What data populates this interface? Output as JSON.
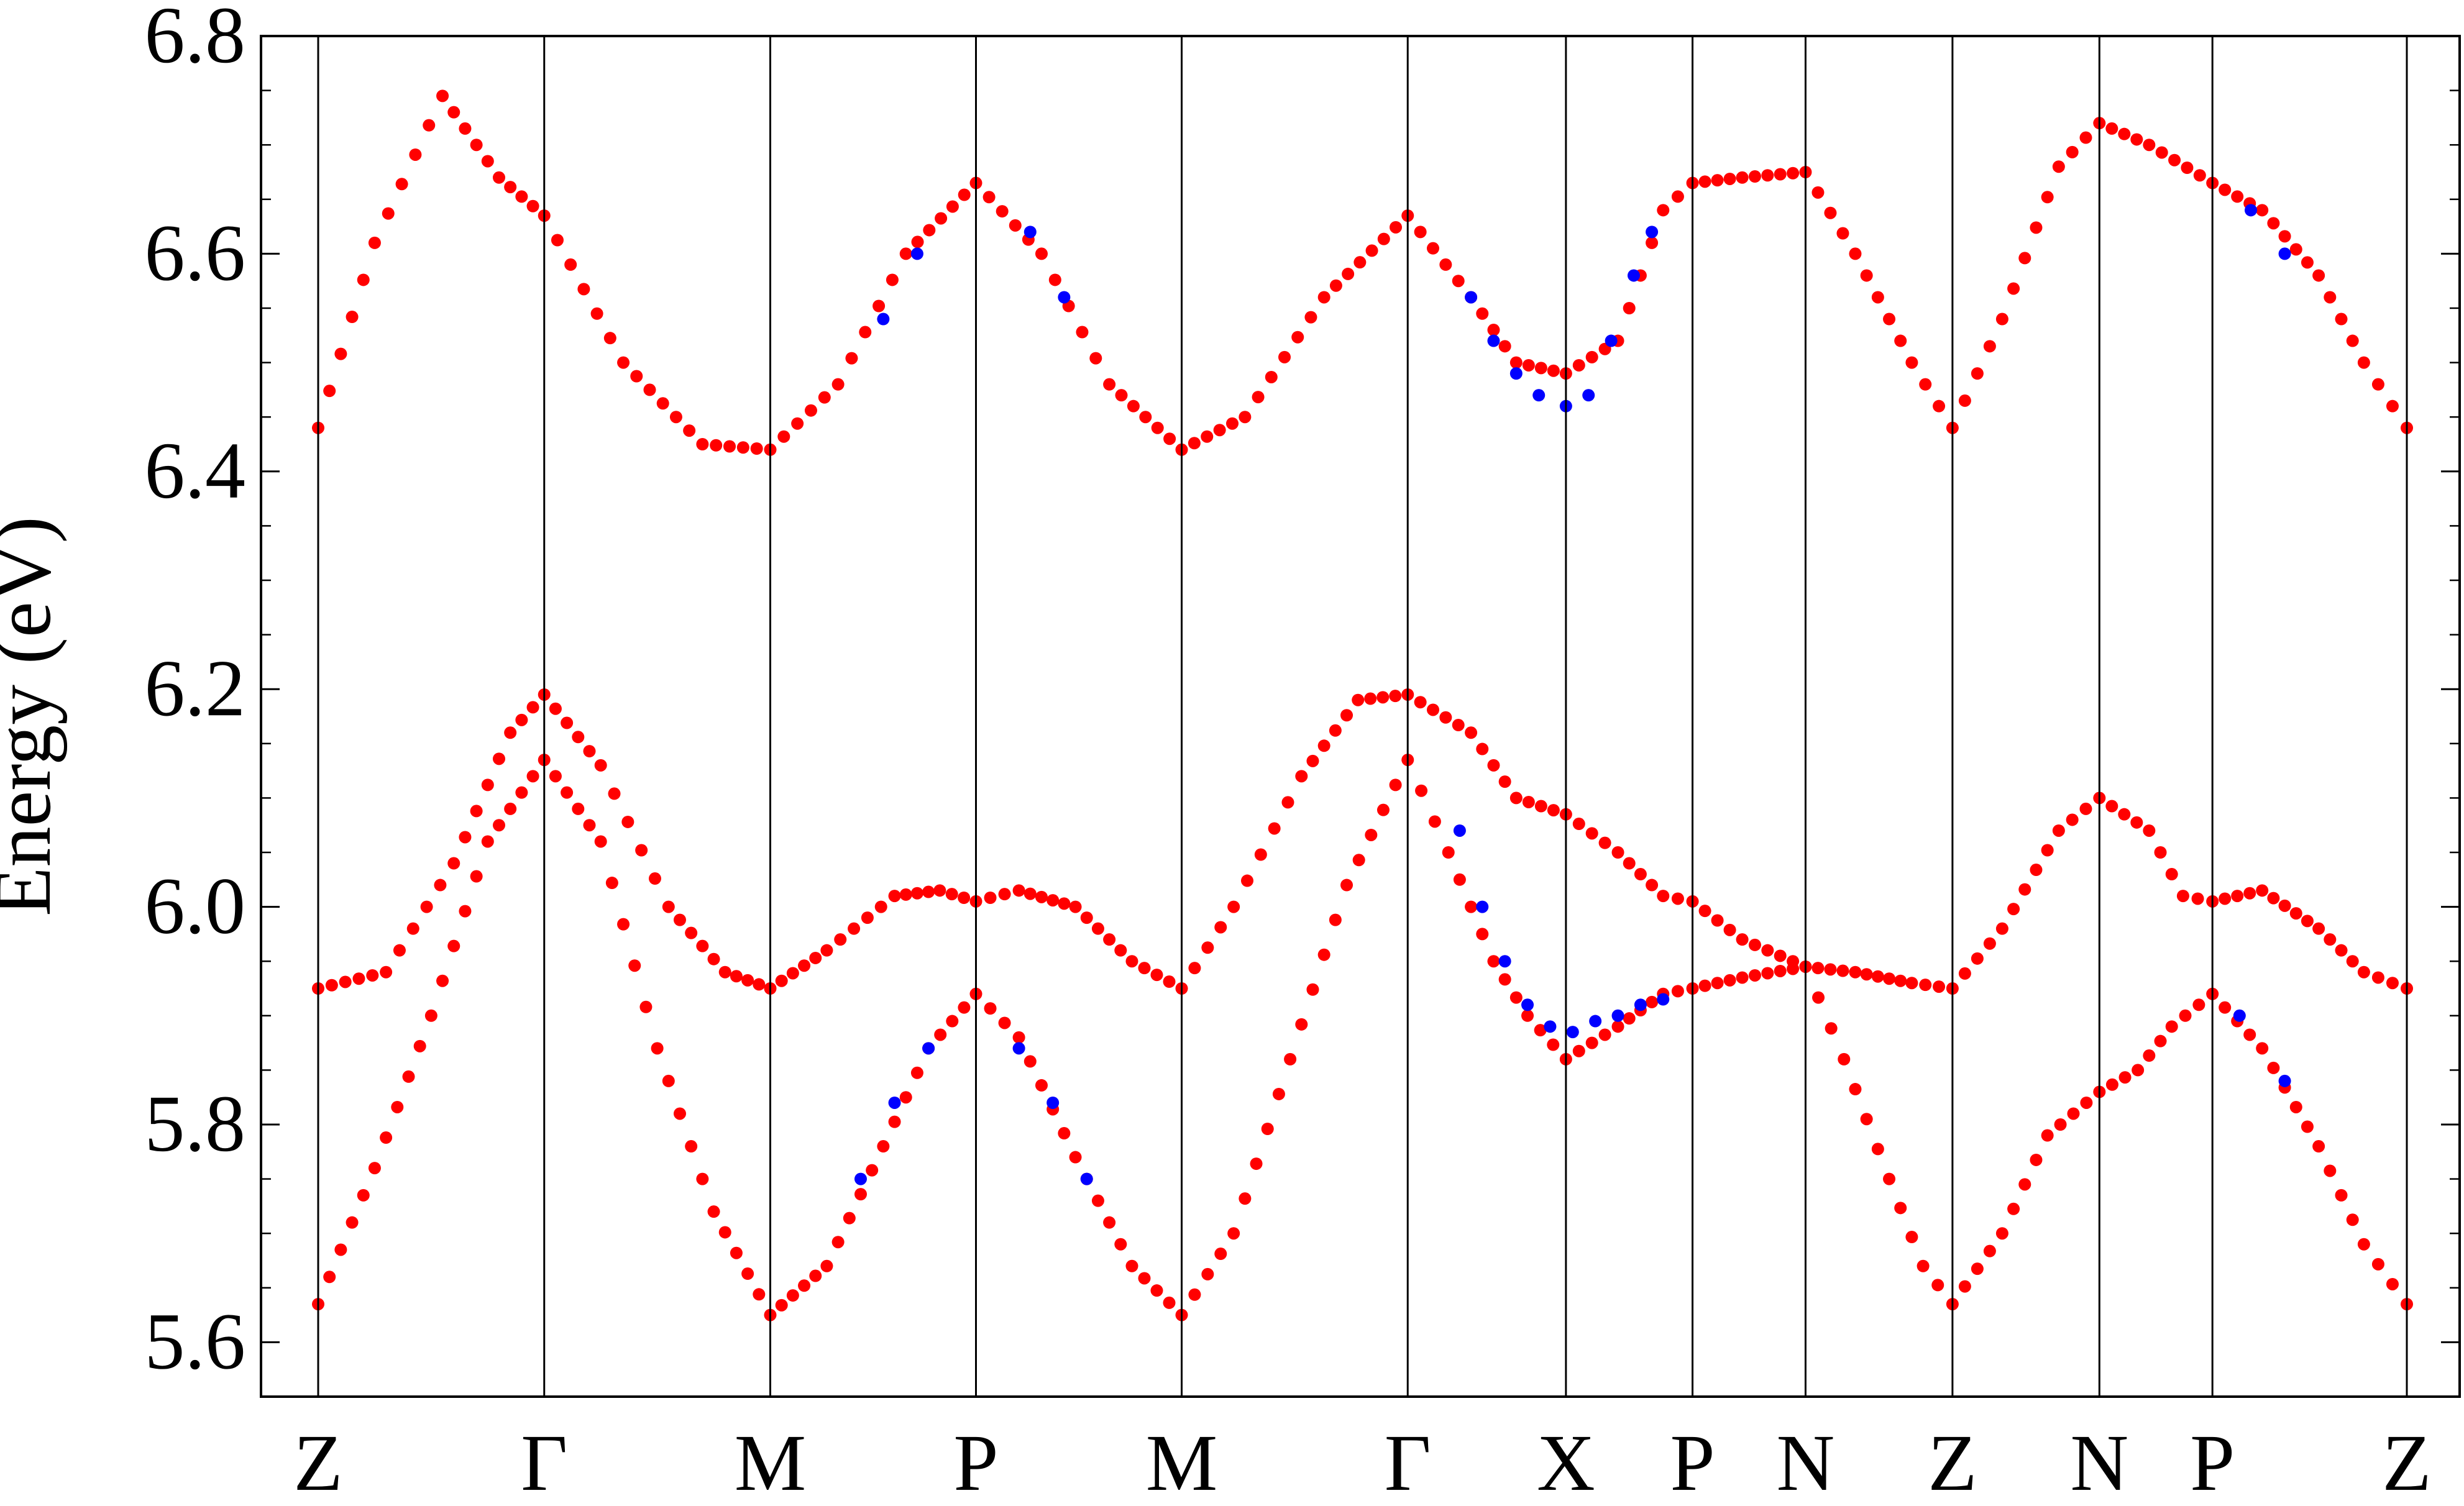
{
  "chart_data": {
    "type": "scatter",
    "title": "",
    "xlabel": "",
    "ylabel": "Energy (eV)",
    "ylim": [
      5.55,
      6.8
    ],
    "yticks": [
      "5.6",
      "5.8",
      "6.0",
      "6.2",
      "6.4",
      "6.6",
      "6.8"
    ],
    "k_points": [
      {
        "label": "Z",
        "x": 0
      },
      {
        "label": "Γ",
        "x": 1
      },
      {
        "label": "M",
        "x": 2
      },
      {
        "label": "P",
        "x": 2.91
      },
      {
        "label": "M",
        "x": 3.82
      },
      {
        "label": "Γ",
        "x": 4.82
      },
      {
        "label": "X",
        "x": 5.52
      },
      {
        "label": "P",
        "x": 6.08
      },
      {
        "label": "N",
        "x": 6.58
      },
      {
        "label": "Z",
        "x": 7.23
      },
      {
        "label": "N",
        "x": 7.88
      },
      {
        "label": "P",
        "x": 8.38
      },
      {
        "label": "Z",
        "x": 9.24
      }
    ],
    "grid": false,
    "legend": "none",
    "series": [
      {
        "color": "#ff0000",
        "points": [
          [
            0.0,
            6.44
          ],
          [
            0.25,
            6.61
          ],
          [
            0.55,
            6.745
          ],
          [
            0.8,
            6.67
          ],
          [
            1.0,
            6.635
          ],
          [
            1.35,
            6.5
          ],
          [
            1.7,
            6.425
          ],
          [
            2.0,
            6.42
          ],
          [
            2.3,
            6.48
          ],
          [
            2.6,
            6.6
          ],
          [
            2.91,
            6.665
          ],
          [
            3.2,
            6.6
          ],
          [
            3.5,
            6.48
          ],
          [
            3.82,
            6.42
          ],
          [
            4.1,
            6.45
          ],
          [
            4.45,
            6.56
          ],
          [
            4.82,
            6.635
          ],
          [
            5.1,
            6.56
          ],
          [
            5.3,
            6.5
          ],
          [
            5.52,
            6.49
          ],
          [
            5.75,
            6.52
          ],
          [
            5.95,
            6.64
          ],
          [
            6.08,
            6.665
          ],
          [
            6.3,
            6.67
          ],
          [
            6.58,
            6.675
          ],
          [
            6.8,
            6.6
          ],
          [
            7.05,
            6.5
          ],
          [
            7.23,
            6.44
          ],
          [
            7.45,
            6.54
          ],
          [
            7.7,
            6.68
          ],
          [
            7.88,
            6.72
          ],
          [
            8.1,
            6.7
          ],
          [
            8.38,
            6.665
          ],
          [
            8.6,
            6.64
          ],
          [
            8.85,
            6.58
          ],
          [
            9.05,
            6.5
          ],
          [
            9.24,
            6.44
          ]
        ]
      },
      {
        "color": "#ff0000",
        "points": [
          [
            0.0,
            5.925
          ],
          [
            0.3,
            5.94
          ],
          [
            0.6,
            6.04
          ],
          [
            0.85,
            6.16
          ],
          [
            1.0,
            6.195
          ],
          [
            1.25,
            6.13
          ],
          [
            1.55,
            6.0
          ],
          [
            1.8,
            5.94
          ],
          [
            2.0,
            5.925
          ],
          [
            2.25,
            5.96
          ],
          [
            2.55,
            6.01
          ],
          [
            2.75,
            6.015
          ],
          [
            2.91,
            6.005
          ],
          [
            3.1,
            6.015
          ],
          [
            3.35,
            6.0
          ],
          [
            3.6,
            5.95
          ],
          [
            3.82,
            5.925
          ],
          [
            4.05,
            6.0
          ],
          [
            4.35,
            6.12
          ],
          [
            4.6,
            6.19
          ],
          [
            4.82,
            6.195
          ],
          [
            5.1,
            6.16
          ],
          [
            5.3,
            6.1
          ],
          [
            5.52,
            6.085
          ],
          [
            5.75,
            6.05
          ],
          [
            5.95,
            6.01
          ],
          [
            6.08,
            6.005
          ],
          [
            6.3,
            5.97
          ],
          [
            6.58,
            5.945
          ],
          [
            6.8,
            5.94
          ],
          [
            7.05,
            5.93
          ],
          [
            7.23,
            5.925
          ],
          [
            7.45,
            5.98
          ],
          [
            7.7,
            6.07
          ],
          [
            7.88,
            6.1
          ],
          [
            8.1,
            6.07
          ],
          [
            8.25,
            6.01
          ],
          [
            8.38,
            6.005
          ],
          [
            8.6,
            6.015
          ],
          [
            8.85,
            5.98
          ],
          [
            9.05,
            5.94
          ],
          [
            9.24,
            5.925
          ]
        ]
      },
      {
        "color": "#ff0000",
        "points": [
          [
            0.0,
            5.635
          ],
          [
            0.25,
            5.76
          ],
          [
            0.5,
            5.9
          ],
          [
            0.75,
            6.06
          ],
          [
            1.0,
            6.135
          ],
          [
            1.25,
            6.06
          ],
          [
            1.5,
            5.87
          ],
          [
            1.75,
            5.72
          ],
          [
            2.0,
            5.625
          ],
          [
            2.25,
            5.67
          ],
          [
            2.5,
            5.78
          ],
          [
            2.7,
            5.87
          ],
          [
            2.91,
            5.92
          ],
          [
            3.1,
            5.88
          ],
          [
            3.35,
            5.77
          ],
          [
            3.6,
            5.67
          ],
          [
            3.82,
            5.625
          ],
          [
            4.05,
            5.7
          ],
          [
            4.3,
            5.86
          ],
          [
            4.55,
            6.02
          ],
          [
            4.82,
            6.135
          ],
          [
            5.0,
            6.05
          ],
          [
            5.2,
            5.95
          ],
          [
            5.35,
            5.9
          ],
          [
            5.52,
            5.86
          ],
          [
            5.75,
            5.89
          ],
          [
            5.95,
            5.92
          ],
          [
            6.08,
            5.925
          ],
          [
            6.3,
            5.935
          ],
          [
            6.58,
            5.945
          ],
          [
            6.75,
            5.86
          ],
          [
            6.95,
            5.75
          ],
          [
            7.1,
            5.67
          ],
          [
            7.23,
            5.635
          ],
          [
            7.45,
            5.7
          ],
          [
            7.65,
            5.79
          ],
          [
            7.88,
            5.83
          ],
          [
            8.05,
            5.85
          ],
          [
            8.2,
            5.89
          ],
          [
            8.38,
            5.92
          ],
          [
            8.6,
            5.87
          ],
          [
            8.85,
            5.78
          ],
          [
            9.05,
            5.69
          ],
          [
            9.24,
            5.635
          ]
        ]
      },
      {
        "color": "#0000ff",
        "points": [
          [
            2.4,
            5.75
          ],
          [
            2.55,
            5.82
          ],
          [
            2.7,
            5.87
          ],
          [
            3.1,
            5.87
          ],
          [
            3.25,
            5.82
          ],
          [
            3.4,
            5.75
          ],
          [
            5.05,
            6.07
          ],
          [
            5.15,
            6.0
          ],
          [
            5.25,
            5.95
          ],
          [
            5.35,
            5.91
          ],
          [
            5.45,
            5.89
          ],
          [
            5.55,
            5.885
          ],
          [
            5.65,
            5.895
          ],
          [
            5.75,
            5.9
          ],
          [
            5.85,
            5.91
          ],
          [
            5.95,
            5.915
          ],
          [
            5.1,
            6.56
          ],
          [
            5.2,
            6.52
          ],
          [
            5.3,
            6.49
          ],
          [
            5.4,
            6.47
          ],
          [
            5.52,
            6.46
          ],
          [
            5.62,
            6.47
          ],
          [
            5.72,
            6.52
          ],
          [
            5.82,
            6.58
          ],
          [
            5.9,
            6.62
          ],
          [
            2.5,
            6.54
          ],
          [
            2.65,
            6.6
          ],
          [
            3.15,
            6.62
          ],
          [
            3.3,
            6.56
          ],
          [
            8.55,
            6.64
          ],
          [
            8.7,
            6.6
          ],
          [
            8.5,
            5.9
          ],
          [
            8.7,
            5.84
          ]
        ]
      }
    ]
  }
}
